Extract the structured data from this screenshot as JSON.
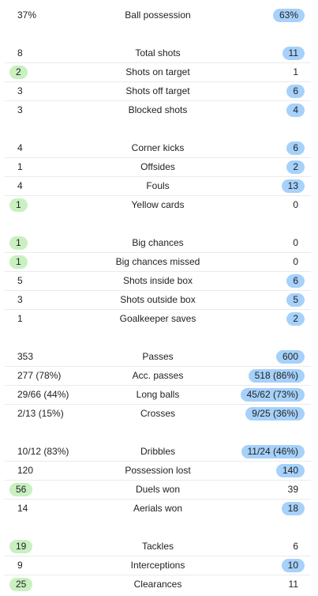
{
  "groups": [
    {
      "rows": [
        {
          "name": "Ball possession",
          "home": "37%",
          "away": "63%",
          "highlight": "away"
        }
      ]
    },
    {
      "rows": [
        {
          "name": "Total shots",
          "home": "8",
          "away": "11",
          "highlight": "away"
        },
        {
          "name": "Shots on target",
          "home": "2",
          "away": "1",
          "highlight": "home"
        },
        {
          "name": "Shots off target",
          "home": "3",
          "away": "6",
          "highlight": "away"
        },
        {
          "name": "Blocked shots",
          "home": "3",
          "away": "4",
          "highlight": "away"
        }
      ]
    },
    {
      "rows": [
        {
          "name": "Corner kicks",
          "home": "4",
          "away": "6",
          "highlight": "away"
        },
        {
          "name": "Offsides",
          "home": "1",
          "away": "2",
          "highlight": "away"
        },
        {
          "name": "Fouls",
          "home": "4",
          "away": "13",
          "highlight": "away"
        },
        {
          "name": "Yellow cards",
          "home": "1",
          "away": "0",
          "highlight": "home"
        }
      ]
    },
    {
      "rows": [
        {
          "name": "Big chances",
          "home": "1",
          "away": "0",
          "highlight": "home"
        },
        {
          "name": "Big chances missed",
          "home": "1",
          "away": "0",
          "highlight": "home"
        },
        {
          "name": "Shots inside box",
          "home": "5",
          "away": "6",
          "highlight": "away"
        },
        {
          "name": "Shots outside box",
          "home": "3",
          "away": "5",
          "highlight": "away"
        },
        {
          "name": "Goalkeeper saves",
          "home": "1",
          "away": "2",
          "highlight": "away"
        }
      ]
    },
    {
      "rows": [
        {
          "name": "Passes",
          "home": "353",
          "away": "600",
          "highlight": "away"
        },
        {
          "name": "Acc. passes",
          "home": "277 (78%)",
          "away": "518 (86%)",
          "highlight": "away"
        },
        {
          "name": "Long balls",
          "home": "29/66 (44%)",
          "away": "45/62 (73%)",
          "highlight": "away"
        },
        {
          "name": "Crosses",
          "home": "2/13 (15%)",
          "away": "9/25 (36%)",
          "highlight": "away"
        }
      ]
    },
    {
      "rows": [
        {
          "name": "Dribbles",
          "home": "10/12 (83%)",
          "away": "11/24 (46%)",
          "highlight": "away"
        },
        {
          "name": "Possession lost",
          "home": "120",
          "away": "140",
          "highlight": "away"
        },
        {
          "name": "Duels won",
          "home": "56",
          "away": "39",
          "highlight": "home"
        },
        {
          "name": "Aerials won",
          "home": "14",
          "away": "18",
          "highlight": "away"
        }
      ]
    },
    {
      "rows": [
        {
          "name": "Tackles",
          "home": "19",
          "away": "6",
          "highlight": "home"
        },
        {
          "name": "Interceptions",
          "home": "9",
          "away": "10",
          "highlight": "away"
        },
        {
          "name": "Clearances",
          "home": "25",
          "away": "11",
          "highlight": "home"
        }
      ]
    }
  ],
  "colors": {
    "home_highlight": "#c8f0c0",
    "away_highlight": "#a6d1fa",
    "divider": "#ebebeb"
  }
}
